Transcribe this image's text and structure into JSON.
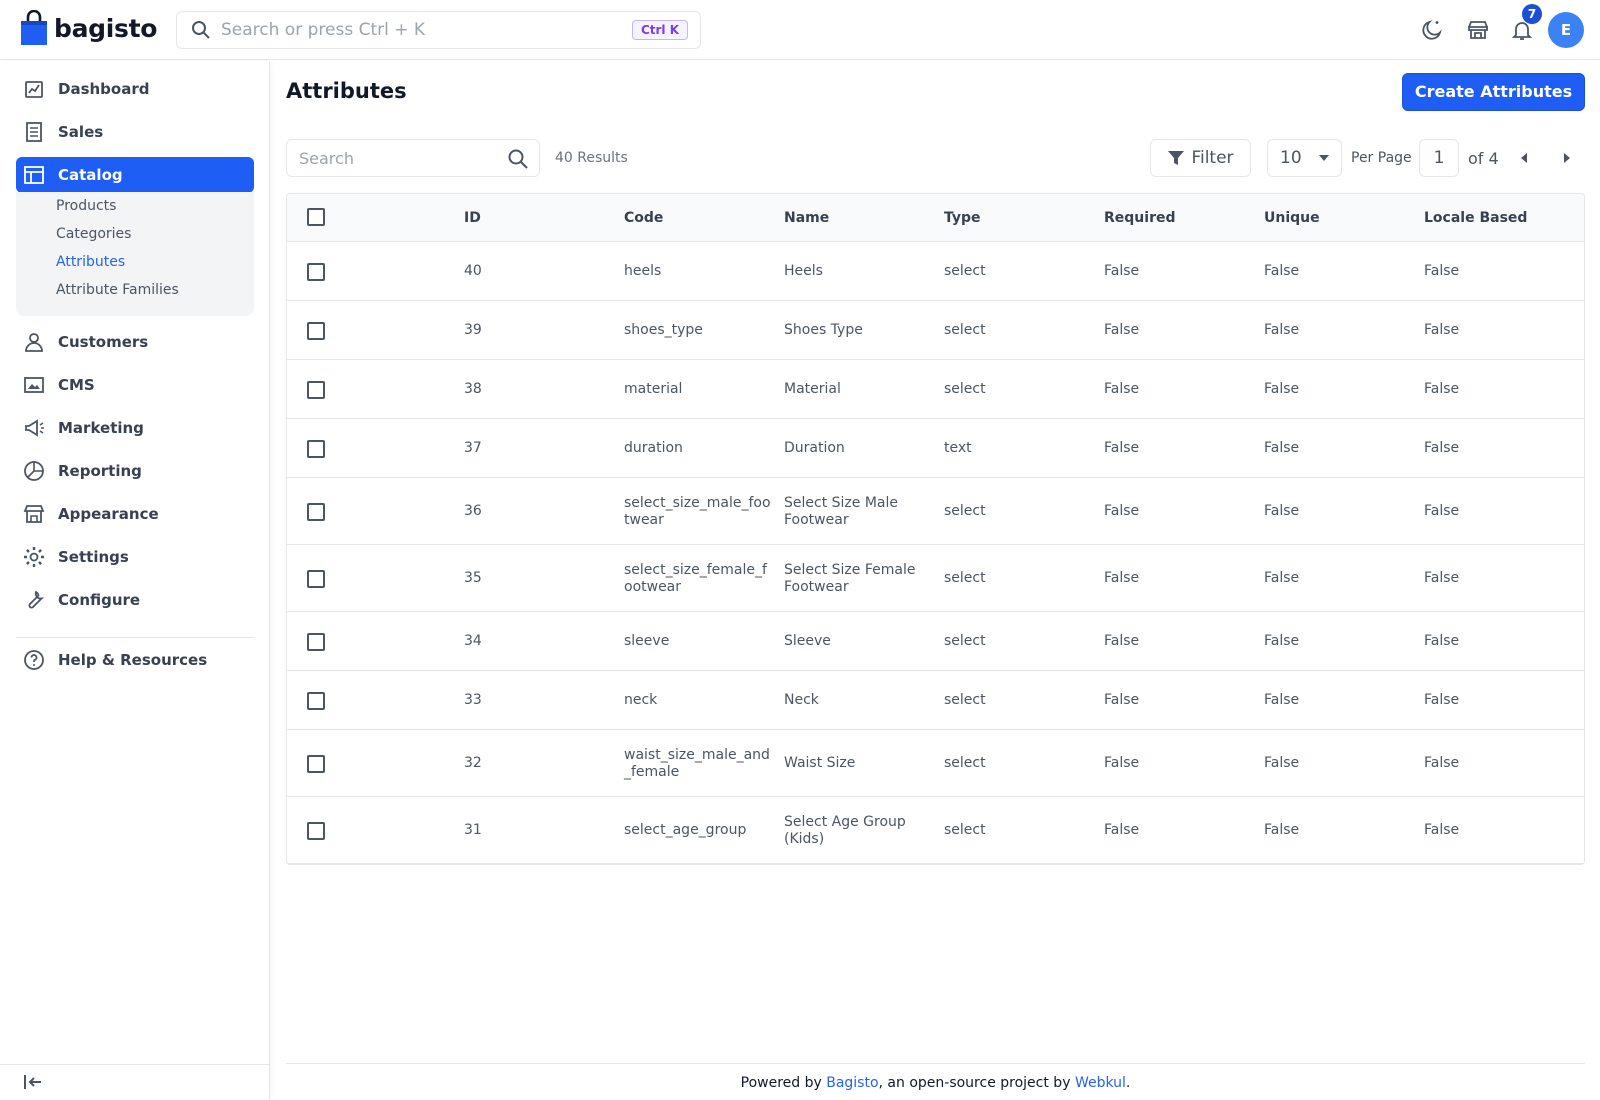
{
  "brand": {
    "name": "bagisto",
    "accent": "#1f5ef5"
  },
  "header": {
    "search_placeholder": "Search or press Ctrl + K",
    "shortcut": "Ctrl K",
    "notification_count": "7",
    "avatar_initial": "E"
  },
  "sidebar": {
    "items": [
      {
        "label": "Dashboard",
        "icon": "dashboard-icon"
      },
      {
        "label": "Sales",
        "icon": "sales-icon"
      },
      {
        "label": "Catalog",
        "icon": "catalog-icon",
        "active": true
      },
      {
        "label": "Customers",
        "icon": "customers-icon"
      },
      {
        "label": "CMS",
        "icon": "cms-icon"
      },
      {
        "label": "Marketing",
        "icon": "marketing-icon"
      },
      {
        "label": "Reporting",
        "icon": "reporting-icon"
      },
      {
        "label": "Appearance",
        "icon": "appearance-icon"
      },
      {
        "label": "Settings",
        "icon": "settings-icon"
      },
      {
        "label": "Configure",
        "icon": "configure-icon"
      },
      {
        "label": "Help & Resources",
        "icon": "help-icon"
      }
    ],
    "catalog_sub": [
      {
        "label": "Products"
      },
      {
        "label": "Categories"
      },
      {
        "label": "Attributes",
        "active": true
      },
      {
        "label": "Attribute Families"
      }
    ]
  },
  "page": {
    "title": "Attributes",
    "create_button": "Create Attributes"
  },
  "grid": {
    "search_placeholder": "Search",
    "results": "40 Results",
    "filter_label": "Filter",
    "per_page_value": "10",
    "per_page_label": "Per Page",
    "current_page": "1",
    "of_pages": "of 4",
    "columns": [
      "ID",
      "Code",
      "Name",
      "Type",
      "Required",
      "Unique",
      "Locale Based"
    ],
    "rows": [
      {
        "id": "40",
        "code": [
          "heels"
        ],
        "name": [
          "Heels"
        ],
        "type": "select",
        "required": "False",
        "unique": "False",
        "locale": "False"
      },
      {
        "id": "39",
        "code": [
          "shoes_type"
        ],
        "name": [
          "Shoes Type"
        ],
        "type": "select",
        "required": "False",
        "unique": "False",
        "locale": "False"
      },
      {
        "id": "38",
        "code": [
          "material"
        ],
        "name": [
          "Material"
        ],
        "type": "select",
        "required": "False",
        "unique": "False",
        "locale": "False"
      },
      {
        "id": "37",
        "code": [
          "duration"
        ],
        "name": [
          "Duration"
        ],
        "type": "text",
        "required": "False",
        "unique": "False",
        "locale": "False"
      },
      {
        "id": "36",
        "code": [
          "select_size_male_foo",
          "twear"
        ],
        "name": [
          "Select Size Male",
          "Footwear"
        ],
        "type": "select",
        "required": "False",
        "unique": "False",
        "locale": "False"
      },
      {
        "id": "35",
        "code": [
          "select_size_female_f",
          "ootwear"
        ],
        "name": [
          "Select Size Female",
          "Footwear"
        ],
        "type": "select",
        "required": "False",
        "unique": "False",
        "locale": "False"
      },
      {
        "id": "34",
        "code": [
          "sleeve"
        ],
        "name": [
          "Sleeve"
        ],
        "type": "select",
        "required": "False",
        "unique": "False",
        "locale": "False"
      },
      {
        "id": "33",
        "code": [
          "neck"
        ],
        "name": [
          "Neck"
        ],
        "type": "select",
        "required": "False",
        "unique": "False",
        "locale": "False"
      },
      {
        "id": "32",
        "code": [
          "waist_size_male_and",
          "_female"
        ],
        "name": [
          "Waist Size"
        ],
        "type": "select",
        "required": "False",
        "unique": "False",
        "locale": "False"
      },
      {
        "id": "31",
        "code": [
          "select_age_group"
        ],
        "name": [
          "Select Age Group",
          "(Kids)"
        ],
        "type": "select",
        "required": "False",
        "unique": "False",
        "locale": "False"
      }
    ]
  },
  "footer": {
    "prefix": "Powered by ",
    "link1": "Bagisto",
    "middle": ", an open-source project by ",
    "link2": "Webkul",
    "suffix": "."
  }
}
